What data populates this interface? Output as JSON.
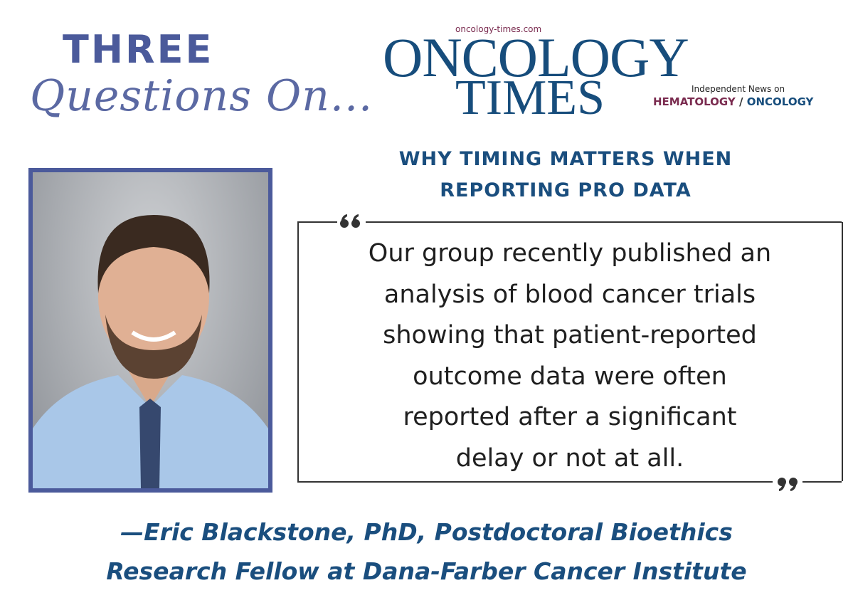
{
  "header": {
    "series_title": "THREE",
    "series_subtitle": "Questions On..."
  },
  "logo": {
    "url": "oncology-times.com",
    "name_line1": "ONCOLOGY",
    "name_line2": "TIMES",
    "tagline": "Independent News on",
    "field1": "HEMATOLOGY",
    "separator": "/",
    "field2": "ONCOLOGY"
  },
  "headline": {
    "lines": [
      "WHY TIMING MATTERS WHEN",
      "REPORTING PRO DATA"
    ]
  },
  "quote": {
    "lines": [
      "Our group recently published an",
      "analysis of blood cancer trials",
      "showing that patient-reported",
      "outcome data were often",
      "reported after a significant",
      "delay or not at all."
    ]
  },
  "attribution": {
    "lines": [
      "—Eric Blackstone, PhD, Postdoctoral Bioethics",
      "Research Fellow at Dana-Farber Cancer Institute"
    ]
  }
}
